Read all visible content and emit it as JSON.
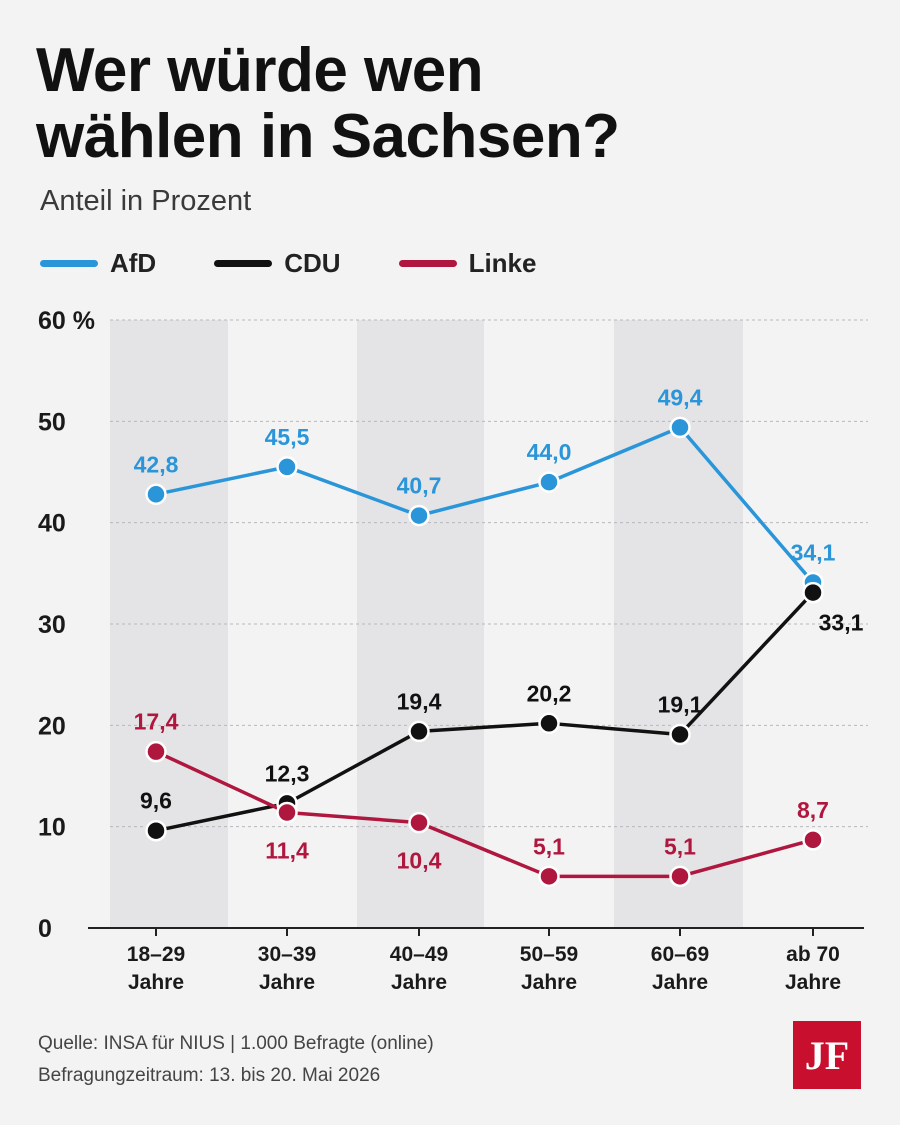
{
  "title_line1": "Wer würde wen",
  "title_line2": "wählen in Sachsen?",
  "subtitle": "Anteil in Prozent",
  "legend": [
    {
      "label": "AfD",
      "color": "#2a95d8"
    },
    {
      "label": "CDU",
      "color": "#111111"
    },
    {
      "label": "Linke",
      "color": "#b0173f"
    }
  ],
  "chart_data": {
    "type": "line",
    "categories": [
      [
        "18–29",
        "Jahre"
      ],
      [
        "30–39",
        "Jahre"
      ],
      [
        "40–49",
        "Jahre"
      ],
      [
        "50–59",
        "Jahre"
      ],
      [
        "60–69",
        "Jahre"
      ],
      [
        "ab 70",
        "Jahre"
      ]
    ],
    "y_ticks": [
      "60 %",
      "50",
      "40",
      "30",
      "20",
      "10",
      "0"
    ],
    "y_tick_values": [
      60,
      50,
      40,
      30,
      20,
      10,
      0
    ],
    "ylim": [
      0,
      60
    ],
    "grid": true,
    "legend_position": "top-left",
    "series": [
      {
        "name": "AfD",
        "color": "#2a95d8",
        "values": [
          42.8,
          45.5,
          40.7,
          44.0,
          49.4,
          34.1
        ],
        "labels": [
          "42,8",
          "45,5",
          "40,7",
          "44,0",
          "49,4",
          "34,1"
        ]
      },
      {
        "name": "CDU",
        "color": "#111111",
        "values": [
          9.6,
          12.3,
          19.4,
          20.2,
          19.1,
          33.1
        ],
        "labels": [
          "9,6",
          "12,3",
          "19,4",
          "20,2",
          "19,1",
          "33,1"
        ]
      },
      {
        "name": "Linke",
        "color": "#b0173f",
        "values": [
          17.4,
          11.4,
          10.4,
          5.1,
          5.1,
          8.7
        ],
        "labels": [
          "17,4",
          "11,4",
          "10,4",
          "5,1",
          "5,1",
          "8,7"
        ]
      }
    ]
  },
  "source_line1": "Quelle: INSA für NIUS | 1.000 Befragte (online)",
  "source_line2": "Befragungzeitraum: 13. bis 20. Mai 2026",
  "logo_text": "JF"
}
